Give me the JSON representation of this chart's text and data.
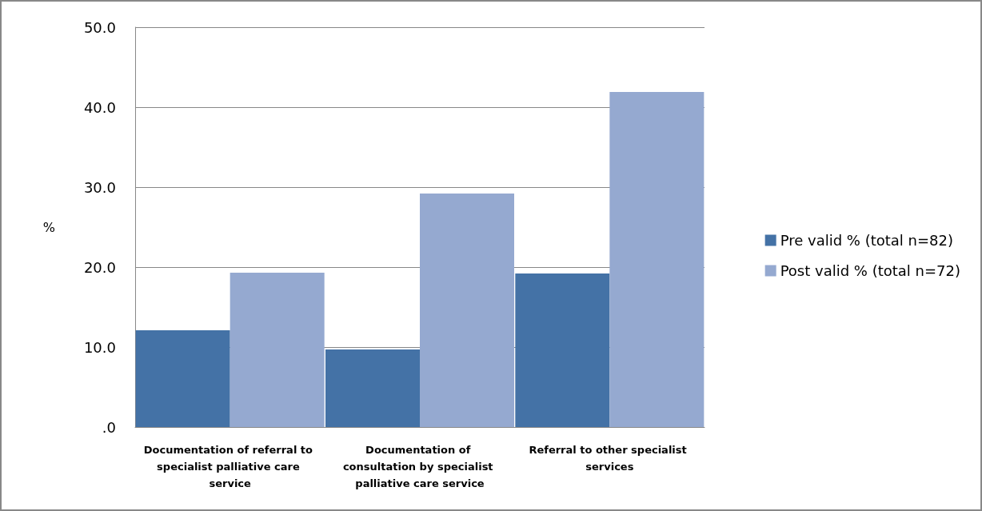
{
  "chart_data": {
    "type": "bar",
    "ylabel": "%",
    "categories": [
      "Documentation of referral to specialist palliative care service",
      "Documentation of consultation by specialist palliative care service",
      "Referral to other specialist services"
    ],
    "series": [
      {
        "name": "Pre valid % (total n=82)",
        "color": "#4472a6",
        "values": [
          12.1,
          9.7,
          19.2
        ]
      },
      {
        "name": "Post valid % (total n=72)",
        "color": "#95a9d0",
        "values": [
          19.3,
          29.2,
          41.9
        ]
      }
    ],
    "ylim": [
      0,
      50
    ],
    "yticks": [
      {
        "value": 0,
        "label": ".0"
      },
      {
        "value": 10,
        "label": "10.0"
      },
      {
        "value": 20,
        "label": "20.0"
      },
      {
        "value": 30,
        "label": "30.0"
      },
      {
        "value": 40,
        "label": "40.0"
      },
      {
        "value": 50,
        "label": "50.0"
      }
    ],
    "grid": "y",
    "legend": "right"
  }
}
